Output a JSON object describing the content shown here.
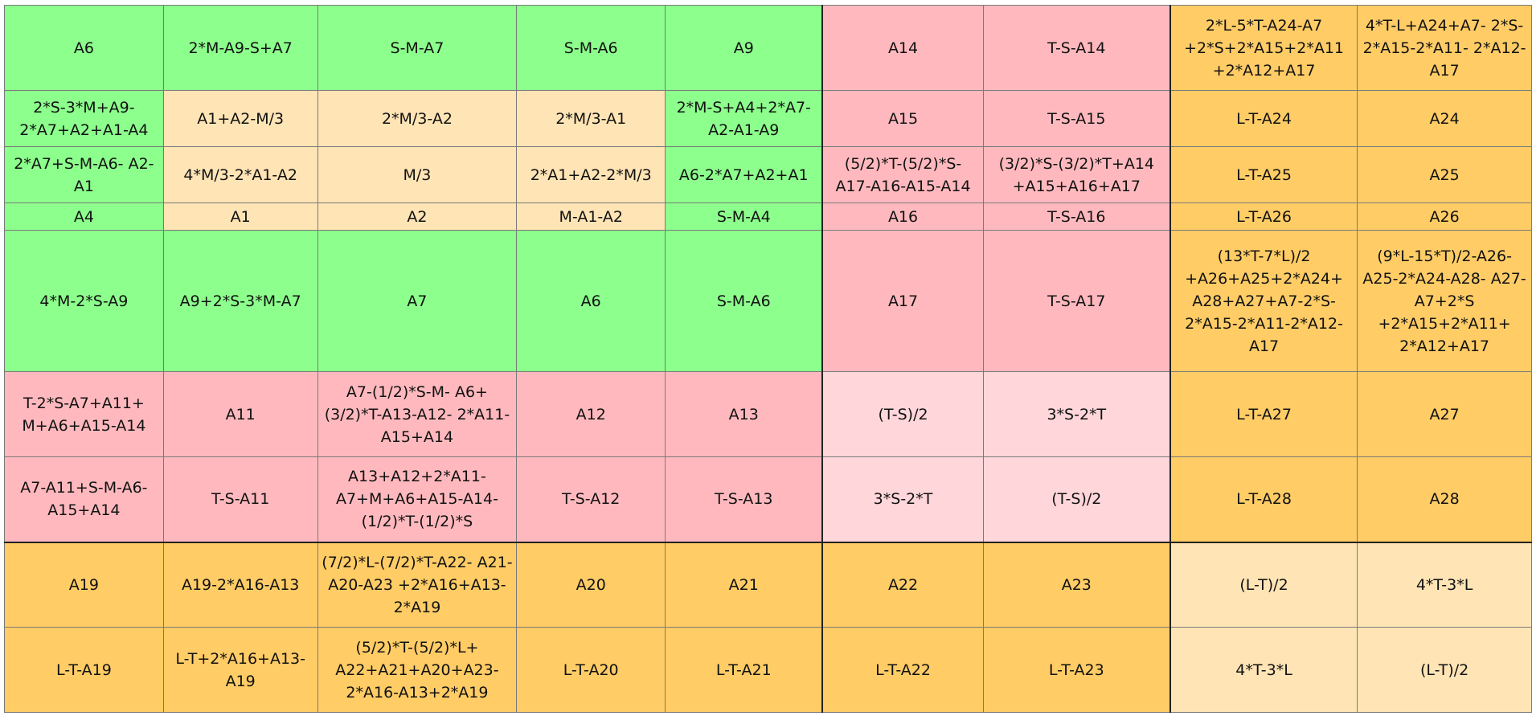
{
  "colors": {
    "bright-green": "#8cff8c",
    "pink": "#ffb9be",
    "light-pink": "#ffd6d9",
    "light-orange": "#ffe4b5",
    "orange": "#ffcc66"
  },
  "table": {
    "rows": [
      {
        "cells": [
          {
            "text": "A6",
            "color": "bright-green"
          },
          {
            "text": "2*M-A9-S+A7",
            "color": "bright-green"
          },
          {
            "text": "S-M-A7",
            "color": "bright-green"
          },
          {
            "text": "S-M-A6",
            "color": "bright-green"
          },
          {
            "text": "A9",
            "color": "bright-green"
          },
          {
            "text": "A14",
            "color": "pink"
          },
          {
            "text": "T-S-A14",
            "color": "pink"
          },
          {
            "text": "2*L-5*T-A24-A7 +2*S+2*A15+2*A11 +2*A12+A17",
            "color": "orange"
          },
          {
            "text": "4*T-L+A24+A7- 2*S-2*A15-2*A11- 2*A12-A17",
            "color": "orange"
          }
        ]
      },
      {
        "cells": [
          {
            "text": "2*S-3*M+A9- 2*A7+A2+A1-A4",
            "color": "bright-green"
          },
          {
            "text": "A1+A2-M/3",
            "color": "light-orange"
          },
          {
            "text": "2*M/3-A2",
            "color": "light-orange"
          },
          {
            "text": "2*M/3-A1",
            "color": "light-orange"
          },
          {
            "text": "2*M-S+A4+2*A7- A2-A1-A9",
            "color": "bright-green"
          },
          {
            "text": "A15",
            "color": "pink"
          },
          {
            "text": "T-S-A15",
            "color": "pink"
          },
          {
            "text": "L-T-A24",
            "color": "orange"
          },
          {
            "text": "A24",
            "color": "orange"
          }
        ]
      },
      {
        "cells": [
          {
            "text": "2*A7+S-M-A6- A2-A1",
            "color": "bright-green"
          },
          {
            "text": "4*M/3-2*A1-A2",
            "color": "light-orange"
          },
          {
            "text": "M/3",
            "color": "light-orange"
          },
          {
            "text": "2*A1+A2-2*M/3",
            "color": "light-orange"
          },
          {
            "text": "A6-2*A7+A2+A1",
            "color": "bright-green"
          },
          {
            "text": "(5/2)*T-(5/2)*S- A17-A16-A15-A14",
            "color": "pink"
          },
          {
            "text": "(3/2)*S-(3/2)*T+A14 +A15+A16+A17",
            "color": "pink"
          },
          {
            "text": "L-T-A25",
            "color": "orange"
          },
          {
            "text": "A25",
            "color": "orange"
          }
        ]
      },
      {
        "cells": [
          {
            "text": "A4",
            "color": "bright-green"
          },
          {
            "text": "A1",
            "color": "light-orange"
          },
          {
            "text": "A2",
            "color": "light-orange"
          },
          {
            "text": "M-A1-A2",
            "color": "light-orange"
          },
          {
            "text": "S-M-A4",
            "color": "bright-green"
          },
          {
            "text": "A16",
            "color": "pink"
          },
          {
            "text": "T-S-A16",
            "color": "pink"
          },
          {
            "text": "L-T-A26",
            "color": "orange"
          },
          {
            "text": "A26",
            "color": "orange"
          }
        ]
      },
      {
        "cells": [
          {
            "text": "4*M-2*S-A9",
            "color": "bright-green"
          },
          {
            "text": "A9+2*S-3*M-A7",
            "color": "bright-green"
          },
          {
            "text": "A7",
            "color": "bright-green"
          },
          {
            "text": "A6",
            "color": "bright-green"
          },
          {
            "text": "S-M-A6",
            "color": "bright-green"
          },
          {
            "text": "A17",
            "color": "pink"
          },
          {
            "text": "T-S-A17",
            "color": "pink"
          },
          {
            "text": "(13*T-7*L)/2 +A26+A25+2*A24+ A28+A27+A7-2*S- 2*A15-2*A11-2*A12- A17",
            "color": "orange"
          },
          {
            "text": "(9*L-15*T)/2-A26- A25-2*A24-A28- A27-A7+2*S +2*A15+2*A11+ 2*A12+A17",
            "color": "orange"
          }
        ]
      },
      {
        "cells": [
          {
            "text": "T-2*S-A7+A11+ M+A6+A15-A14",
            "color": "pink"
          },
          {
            "text": "A11",
            "color": "pink"
          },
          {
            "text": "A7-(1/2)*S-M- A6+(3/2)*T-A13-A12- 2*A11-A15+A14",
            "color": "pink"
          },
          {
            "text": "A12",
            "color": "pink"
          },
          {
            "text": "A13",
            "color": "pink"
          },
          {
            "text": "(T-S)/2",
            "color": "light-pink"
          },
          {
            "text": "3*S-2*T",
            "color": "light-pink"
          },
          {
            "text": "L-T-A27",
            "color": "orange"
          },
          {
            "text": "A27",
            "color": "orange"
          }
        ]
      },
      {
        "cells": [
          {
            "text": "A7-A11+S-M-A6- A15+A14",
            "color": "pink"
          },
          {
            "text": "T-S-A11",
            "color": "pink"
          },
          {
            "text": "A13+A12+2*A11- A7+M+A6+A15-A14- (1/2)*T-(1/2)*S",
            "color": "pink"
          },
          {
            "text": "T-S-A12",
            "color": "pink"
          },
          {
            "text": "T-S-A13",
            "color": "pink"
          },
          {
            "text": "3*S-2*T",
            "color": "light-pink"
          },
          {
            "text": "(T-S)/2",
            "color": "light-pink"
          },
          {
            "text": "L-T-A28",
            "color": "orange"
          },
          {
            "text": "A28",
            "color": "orange"
          }
        ]
      },
      {
        "cells": [
          {
            "text": "A19",
            "color": "orange"
          },
          {
            "text": "A19-2*A16-A13",
            "color": "orange"
          },
          {
            "text": "(7/2)*L-(7/2)*T-A22- A21-A20-A23 +2*A16+A13-2*A19",
            "color": "orange"
          },
          {
            "text": "A20",
            "color": "orange"
          },
          {
            "text": "A21",
            "color": "orange"
          },
          {
            "text": "A22",
            "color": "orange"
          },
          {
            "text": "A23",
            "color": "orange"
          },
          {
            "text": "(L-T)/2",
            "color": "light-orange"
          },
          {
            "text": "4*T-3*L",
            "color": "light-orange"
          }
        ]
      },
      {
        "cells": [
          {
            "text": "L-T-A19",
            "color": "orange"
          },
          {
            "text": "L-T+2*A16+A13- A19",
            "color": "orange"
          },
          {
            "text": "(5/2)*T-(5/2)*L+ A22+A21+A20+A23- 2*A16-A13+2*A19",
            "color": "orange"
          },
          {
            "text": "L-T-A20",
            "color": "orange"
          },
          {
            "text": "L-T-A21",
            "color": "orange"
          },
          {
            "text": "L-T-A22",
            "color": "orange"
          },
          {
            "text": "L-T-A23",
            "color": "orange"
          },
          {
            "text": "4*T-3*L",
            "color": "light-orange"
          },
          {
            "text": "(L-T)/2",
            "color": "light-orange"
          }
        ]
      }
    ]
  }
}
